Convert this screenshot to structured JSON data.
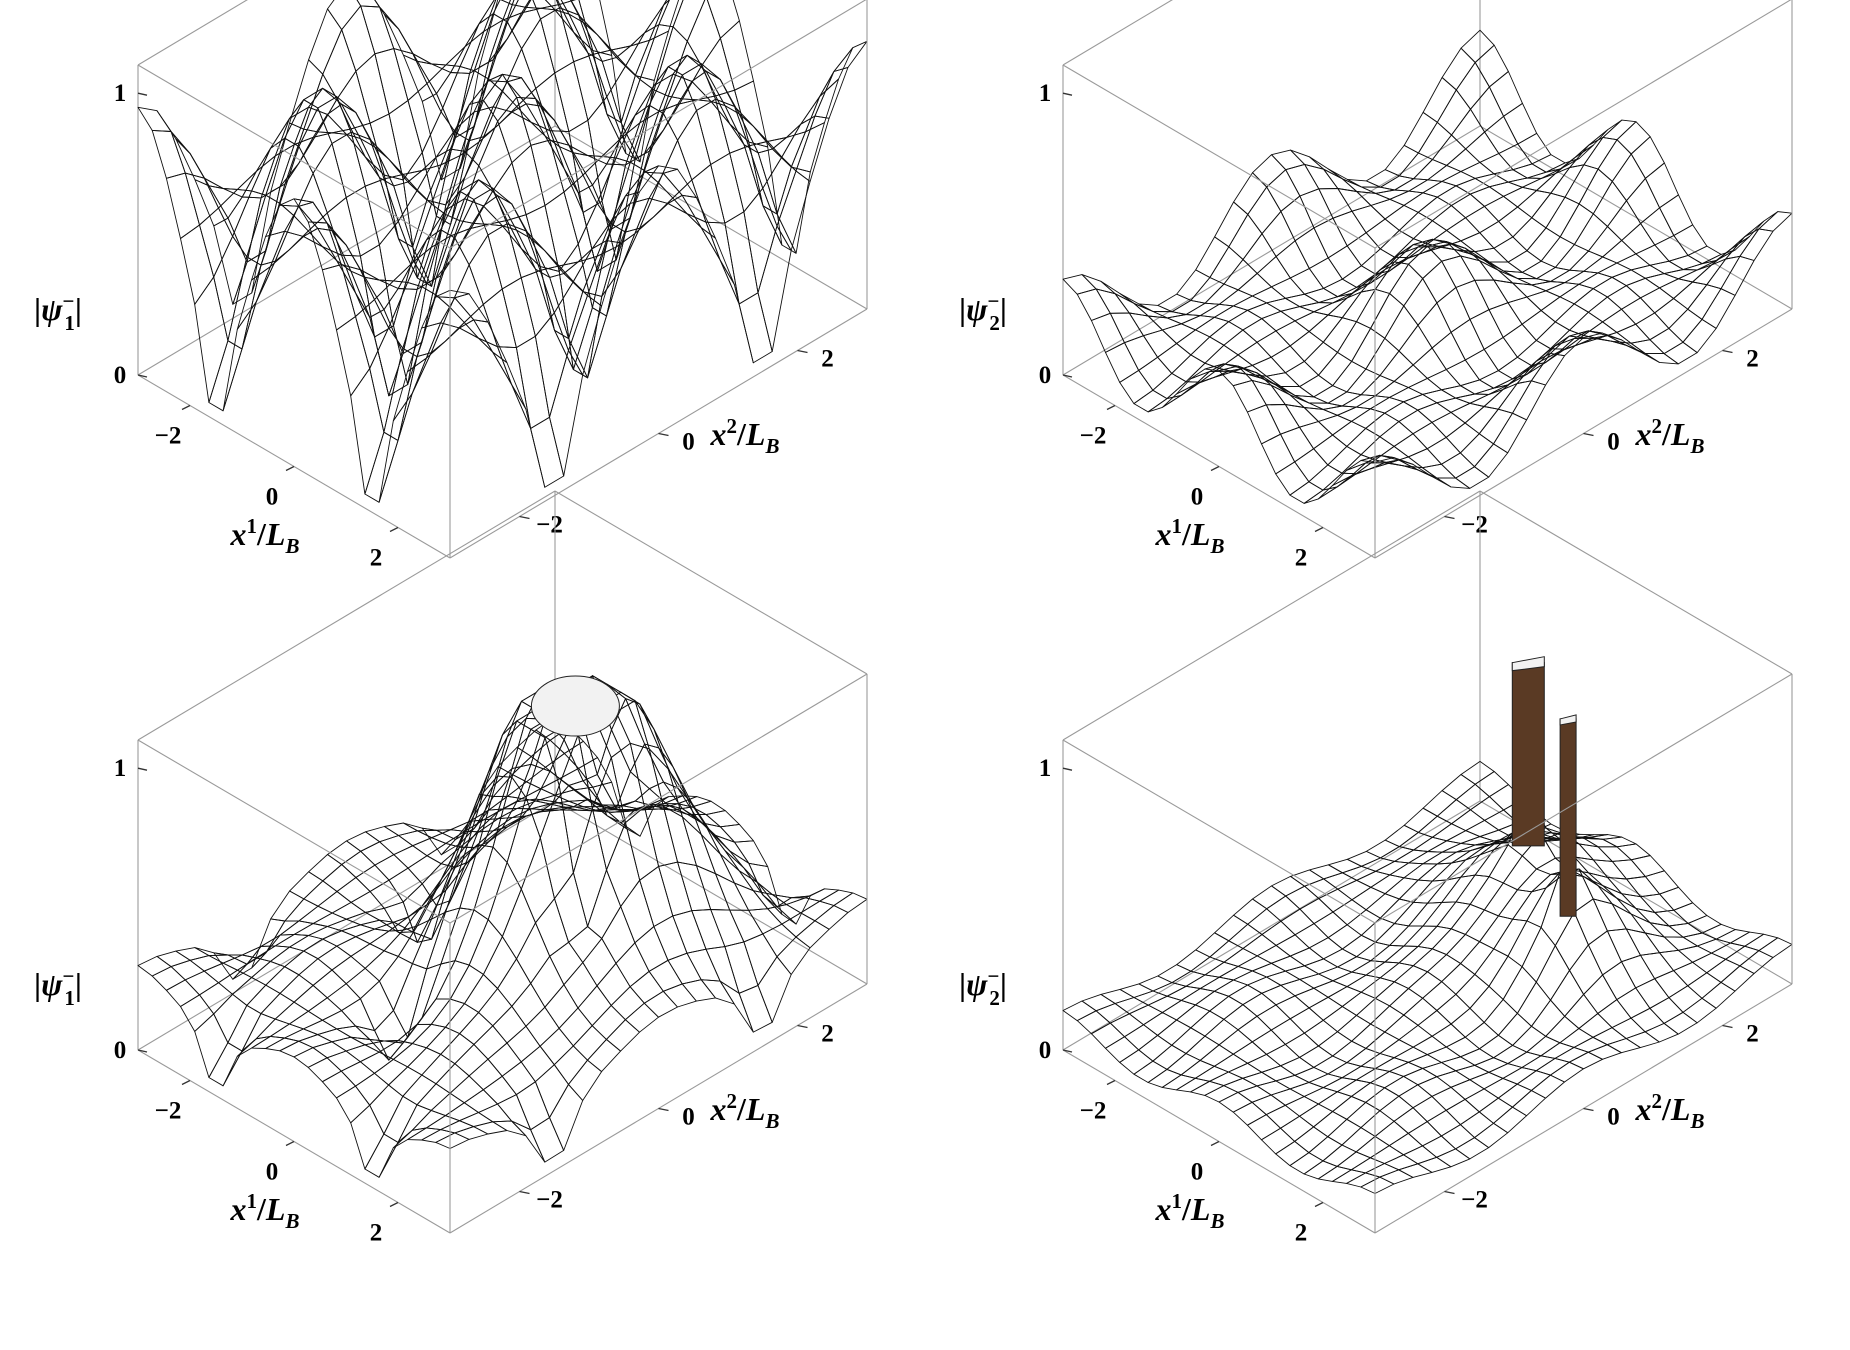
{
  "chart_data": [
    {
      "type": "surface",
      "panel": "top-left",
      "z_label": {
        "prefix": "|",
        "symbol": "ψ",
        "sub": "1",
        "sup": "−",
        "suffix": "|"
      },
      "x_label": {
        "symbol": "x",
        "sup": "1",
        "sep": "/",
        "unit": "L",
        "unit_sub": "B"
      },
      "y_label": {
        "symbol": "x",
        "sup": "2",
        "sep": "/",
        "unit": "L",
        "unit_sub": "B"
      },
      "x_ticks": [
        "−2",
        "0",
        "2"
      ],
      "y_ticks": [
        "−2",
        "0",
        "2"
      ],
      "z_ticks": [
        "0",
        "1"
      ],
      "xlim": [
        -3,
        3
      ],
      "ylim": [
        -3,
        3
      ],
      "zlim": [
        0,
        1.1
      ],
      "description_values": {
        "baseline": 0.78,
        "amplitude": 0.75,
        "minima": "periodic dips to about 0.2"
      },
      "colors": {
        "high": "#d0603a",
        "mid": "#a86a45",
        "low": "#f0e080"
      }
    },
    {
      "type": "surface",
      "panel": "top-right",
      "z_label": {
        "prefix": "|",
        "symbol": "ψ",
        "sub": "2",
        "sup": "−",
        "suffix": "|"
      },
      "x_label": {
        "symbol": "x",
        "sup": "1",
        "sep": "/",
        "unit": "L",
        "unit_sub": "B"
      },
      "y_label": {
        "symbol": "x",
        "sup": "2",
        "sep": "/",
        "unit": "L",
        "unit_sub": "B"
      },
      "x_ticks": [
        "−2",
        "0",
        "2"
      ],
      "y_ticks": [
        "−2",
        "0",
        "2"
      ],
      "z_ticks": [
        "0",
        "1"
      ],
      "xlim": [
        -3,
        3
      ],
      "ylim": [
        -3,
        3
      ],
      "zlim": [
        0,
        1.1
      ],
      "colors": {
        "high": "#e7e46a",
        "low": "#6fb7e0"
      }
    },
    {
      "type": "surface",
      "panel": "bottom-left",
      "z_label": {
        "prefix": "|",
        "symbol": "ψ",
        "sub": "1",
        "sup": "−",
        "suffix": "|"
      },
      "x_label": {
        "symbol": "x",
        "sup": "1",
        "sep": "/",
        "unit": "L",
        "unit_sub": "B"
      },
      "y_label": {
        "symbol": "x",
        "sup": "2",
        "sep": "/",
        "unit": "L",
        "unit_sub": "B"
      },
      "x_ticks": [
        "−2",
        "0",
        "2"
      ],
      "y_ticks": [
        "−2",
        "0",
        "2"
      ],
      "z_ticks": [
        "0",
        "1"
      ],
      "xlim": [
        -3,
        3
      ],
      "ylim": [
        -3,
        3
      ],
      "zlim": [
        0,
        1.1
      ],
      "colors": {
        "high": "#c8603a",
        "mid": "#e7e46a",
        "low": "#6fb7e0",
        "clip": "#f2f2f2"
      }
    },
    {
      "type": "surface",
      "panel": "bottom-right",
      "z_label": {
        "prefix": "|",
        "symbol": "ψ",
        "sub": "2",
        "sup": "−",
        "suffix": "|"
      },
      "x_label": {
        "symbol": "x",
        "sup": "1",
        "sep": "/",
        "unit": "L",
        "unit_sub": "B"
      },
      "y_label": {
        "symbol": "x",
        "sup": "2",
        "sep": "/",
        "unit": "L",
        "unit_sub": "B"
      },
      "x_ticks": [
        "−2",
        "0",
        "2"
      ],
      "y_ticks": [
        "−2",
        "0",
        "2"
      ],
      "z_ticks": [
        "0",
        "1"
      ],
      "xlim": [
        -3,
        3
      ],
      "ylim": [
        -3,
        3
      ],
      "zlim": [
        0,
        1.1
      ],
      "colors": {
        "high": "#8a5a3a",
        "mid": "#e7e46a",
        "low": "#6fb7e0",
        "clip": "#f2f2f2"
      }
    }
  ]
}
